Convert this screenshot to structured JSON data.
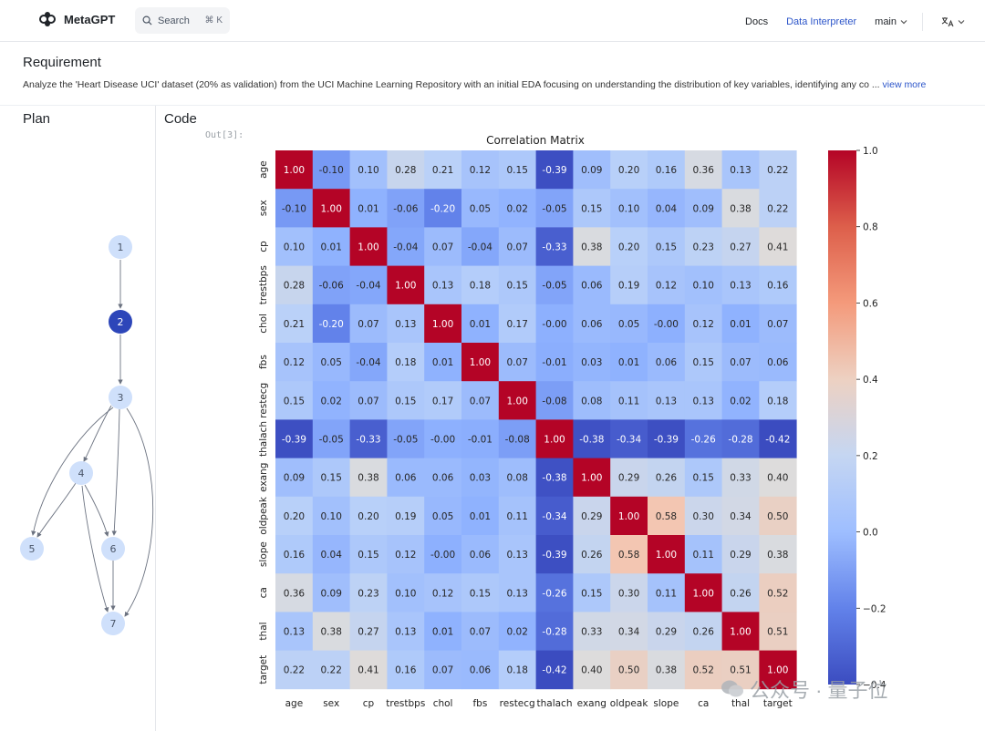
{
  "topbar": {
    "brand": "MetaGPT",
    "search_label": "Search",
    "search_shortcut": "⌘ K",
    "nav": {
      "docs": "Docs",
      "data_interpreter": "Data Interpreter",
      "branch": "main"
    }
  },
  "requirement": {
    "title": "Requirement",
    "text": "Analyze the 'Heart Disease UCI' dataset (20% as validation) from the UCI Machine Learning Repository with an initial EDA focusing on understanding the distribution of key variables, identifying any co ...",
    "view_more": "view more"
  },
  "plan": {
    "title": "Plan",
    "nodes": [
      "1",
      "2",
      "3",
      "4",
      "5",
      "6",
      "7"
    ],
    "active_node": "2"
  },
  "code": {
    "title": "Code",
    "out_label": "Out[3]:"
  },
  "chart_data": {
    "type": "heatmap",
    "title": "Correlation Matrix",
    "labels": [
      "age",
      "sex",
      "cp",
      "trestbps",
      "chol",
      "fbs",
      "restecg",
      "thalach",
      "exang",
      "oldpeak",
      "slope",
      "ca",
      "thal",
      "target"
    ],
    "matrix": [
      [
        "1.00",
        "-0.10",
        "0.10",
        "0.28",
        "0.21",
        "0.12",
        "0.15",
        "-0.39",
        "0.09",
        "0.20",
        "0.16",
        "0.36",
        "0.13",
        "0.22"
      ],
      [
        "-0.10",
        "1.00",
        "0.01",
        "-0.06",
        "-0.20",
        "0.05",
        "0.02",
        "-0.05",
        "0.15",
        "0.10",
        "0.04",
        "0.09",
        "0.38",
        "0.22"
      ],
      [
        "0.10",
        "0.01",
        "1.00",
        "-0.04",
        "0.07",
        "-0.04",
        "0.07",
        "-0.33",
        "0.38",
        "0.20",
        "0.15",
        "0.23",
        "0.27",
        "0.41"
      ],
      [
        "0.28",
        "-0.06",
        "-0.04",
        "1.00",
        "0.13",
        "0.18",
        "0.15",
        "-0.05",
        "0.06",
        "0.19",
        "0.12",
        "0.10",
        "0.13",
        "0.16"
      ],
      [
        "0.21",
        "-0.20",
        "0.07",
        "0.13",
        "1.00",
        "0.01",
        "0.17",
        "-0.00",
        "0.06",
        "0.05",
        "-0.00",
        "0.12",
        "0.01",
        "0.07"
      ],
      [
        "0.12",
        "0.05",
        "-0.04",
        "0.18",
        "0.01",
        "1.00",
        "0.07",
        "-0.01",
        "0.03",
        "0.01",
        "0.06",
        "0.15",
        "0.07",
        "0.06"
      ],
      [
        "0.15",
        "0.02",
        "0.07",
        "0.15",
        "0.17",
        "0.07",
        "1.00",
        "-0.08",
        "0.08",
        "0.11",
        "0.13",
        "0.13",
        "0.02",
        "0.18"
      ],
      [
        "-0.39",
        "-0.05",
        "-0.33",
        "-0.05",
        "-0.00",
        "-0.01",
        "-0.08",
        "1.00",
        "-0.38",
        "-0.34",
        "-0.39",
        "-0.26",
        "-0.28",
        "-0.42"
      ],
      [
        "0.09",
        "0.15",
        "0.38",
        "0.06",
        "0.06",
        "0.03",
        "0.08",
        "-0.38",
        "1.00",
        "0.29",
        "0.26",
        "0.15",
        "0.33",
        "0.40"
      ],
      [
        "0.20",
        "0.10",
        "0.20",
        "0.19",
        "0.05",
        "0.01",
        "0.11",
        "-0.34",
        "0.29",
        "1.00",
        "0.58",
        "0.30",
        "0.34",
        "0.50"
      ],
      [
        "0.16",
        "0.04",
        "0.15",
        "0.12",
        "-0.00",
        "0.06",
        "0.13",
        "-0.39",
        "0.26",
        "0.58",
        "1.00",
        "0.11",
        "0.29",
        "0.38"
      ],
      [
        "0.36",
        "0.09",
        "0.23",
        "0.10",
        "0.12",
        "0.15",
        "0.13",
        "-0.26",
        "0.15",
        "0.30",
        "0.11",
        "1.00",
        "0.26",
        "0.52"
      ],
      [
        "0.13",
        "0.38",
        "0.27",
        "0.13",
        "0.01",
        "0.07",
        "0.02",
        "-0.28",
        "0.33",
        "0.34",
        "0.29",
        "0.26",
        "1.00",
        "0.51"
      ],
      [
        "0.22",
        "0.22",
        "0.41",
        "0.16",
        "0.07",
        "0.06",
        "0.18",
        "-0.42",
        "0.40",
        "0.50",
        "0.38",
        "0.52",
        "0.51",
        "1.00"
      ]
    ],
    "colorbar_range": [
      -0.4,
      1.0
    ],
    "colorbar_ticks": [
      "1.0",
      "0.8",
      "0.6",
      "0.4",
      "0.2",
      "0.0",
      "−0.2",
      "−0.4"
    ],
    "colormap": "coolwarm"
  },
  "watermark": "公众号 · 量子位"
}
